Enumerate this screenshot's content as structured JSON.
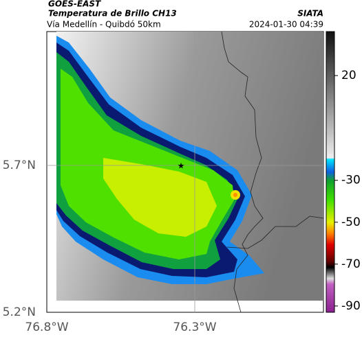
{
  "header": {
    "satellite": "GOES-EAST",
    "product": "Temperatura de Brillo CH13",
    "route": "Vía Medellín - Quibdó 50km",
    "org": "SIATA",
    "datetime": "2024-01-30 04:39"
  },
  "map": {
    "lat_ticks": [
      "5.7°N",
      "5.2°N"
    ],
    "lon_ticks": [
      "76.8°W",
      "76.3°W"
    ]
  },
  "colorbar": {
    "lim": [
      -93,
      41
    ],
    "ticks": [
      20,
      -30,
      -50,
      -70,
      -90
    ]
  }
}
